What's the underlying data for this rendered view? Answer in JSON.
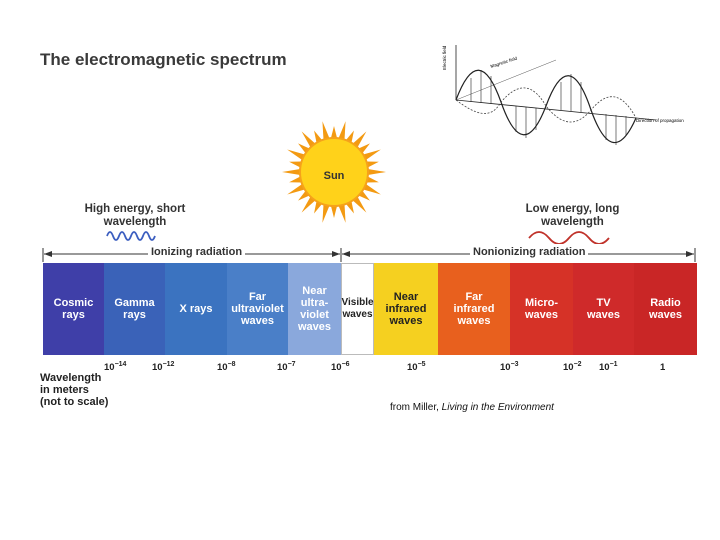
{
  "title": "The electromagnetic spectrum",
  "sun_label": "Sun",
  "high_energy": "High energy, short wavelength",
  "low_energy": "Low energy, long wavelength",
  "ionizing": "Ionizing radiation",
  "nonionizing": "Nonionizing radiation",
  "bands": [
    {
      "label": "Cosmic rays",
      "color": "#3f3fa8"
    },
    {
      "label": "Gamma rays",
      "color": "#3a62b8"
    },
    {
      "label": "X rays",
      "color": "#3b73c0"
    },
    {
      "label": "Far ultraviolet waves",
      "color": "#4a7fc8"
    },
    {
      "label": "Near ultra-violet waves",
      "color": "#8aa8dc"
    },
    {
      "label": "Visible waves",
      "color": "#ffffff"
    },
    {
      "label": "Near infrared waves",
      "color": "#f5d020"
    },
    {
      "label": "Far infrared waves",
      "color": "#e8601e"
    },
    {
      "label": "Micro-waves",
      "color": "#d63227"
    },
    {
      "label": "TV waves",
      "color": "#cf2a2a"
    },
    {
      "label": "Radio waves",
      "color": "#c92626"
    }
  ],
  "ticks": [
    {
      "base": "10",
      "exp": "−14"
    },
    {
      "base": "10",
      "exp": "−12"
    },
    {
      "base": "10",
      "exp": "−8"
    },
    {
      "base": "10",
      "exp": "−7"
    },
    {
      "base": "10",
      "exp": "−6"
    },
    {
      "base": "10",
      "exp": "−5"
    },
    {
      "base": "10",
      "exp": "−3"
    },
    {
      "base": "10",
      "exp": "−2"
    },
    {
      "base": "10",
      "exp": "−1"
    },
    {
      "base": "1",
      "exp": ""
    }
  ],
  "wavelength_label": [
    "Wavelength",
    "in meters",
    "(not to scale)"
  ],
  "credit_prefix": "from Miller, ",
  "credit_title": "Living in the Environment",
  "wave_diagram": {
    "electric_field": "Electric field",
    "magnetic_field": "Magnetic field",
    "direction": "Direction of propagation"
  },
  "colors": {
    "sun_core": "#ffd21a",
    "sun_rays": "#f39a12",
    "short_wave": "#3d5fc0",
    "long_wave": "#c0322a"
  }
}
